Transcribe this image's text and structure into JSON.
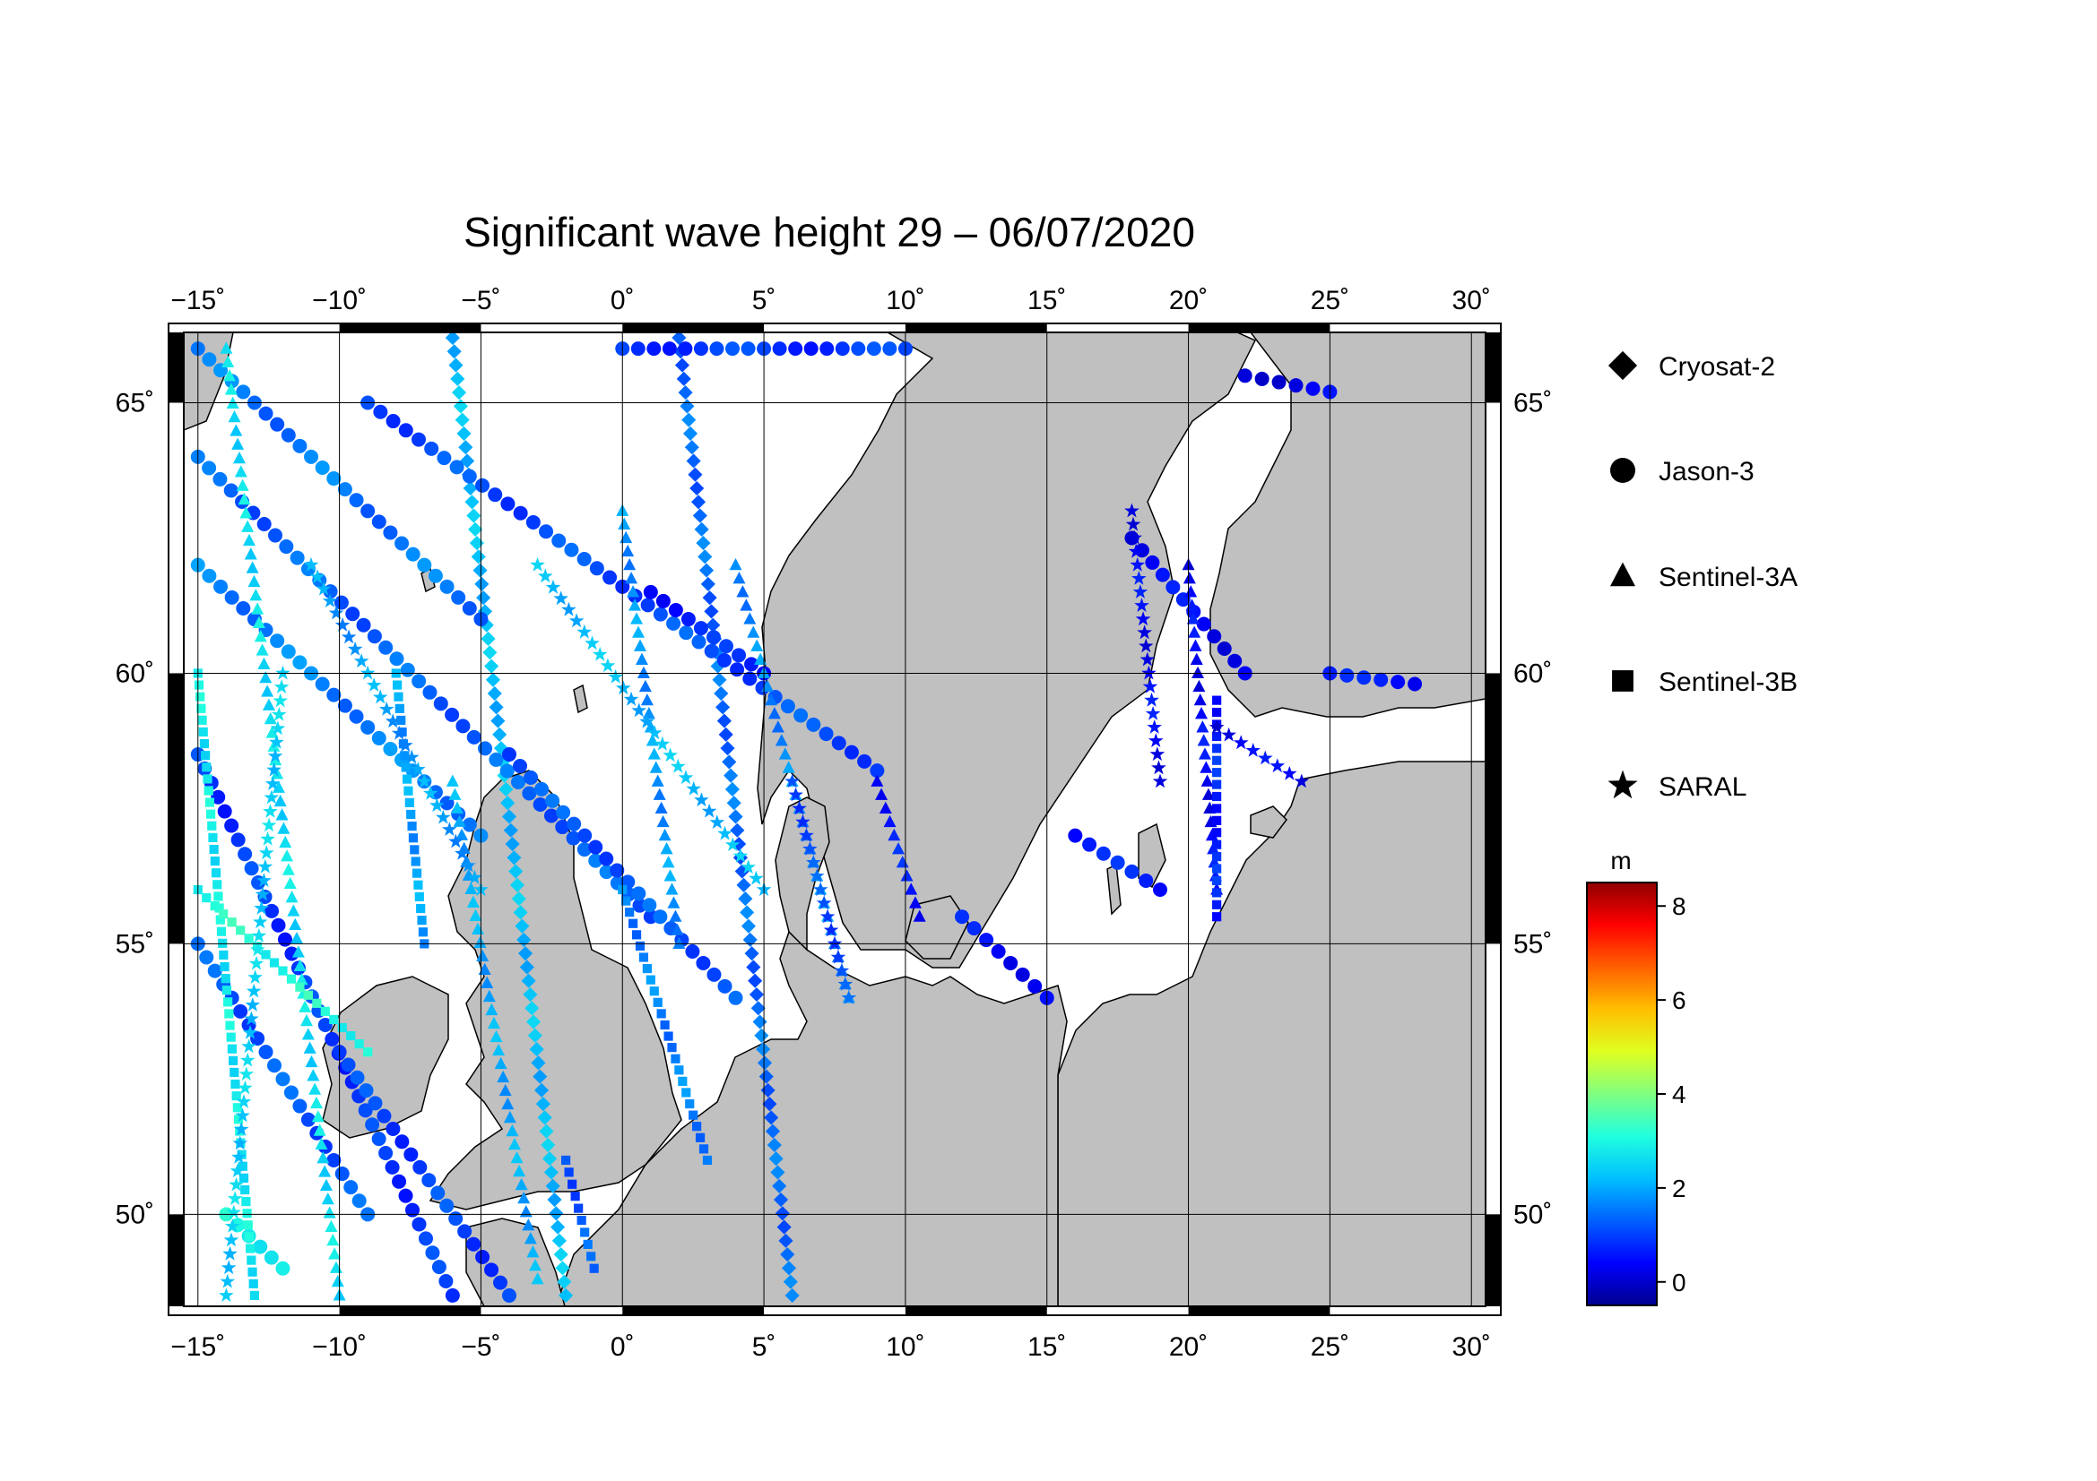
{
  "title": "Significant wave height 29 – 06/07/2020",
  "map": {
    "lon_range": [
      -15.5,
      30.5
    ],
    "lat_range": [
      48.3,
      66.3
    ],
    "lon_ticks": [
      "−15˚",
      "−10˚",
      "−5˚",
      "0˚",
      "5˚",
      "10˚",
      "15˚",
      "20˚",
      "25˚",
      "30˚"
    ],
    "lat_ticks": [
      "50˚",
      "55˚",
      "60˚",
      "65˚"
    ],
    "land_color": "#c0c0c0",
    "sea_color": "#ffffff"
  },
  "legend": {
    "items": [
      {
        "label": "Cryosat-2",
        "icon": "diamond-icon"
      },
      {
        "label": "Jason-3",
        "icon": "circle-icon"
      },
      {
        "label": "Sentinel-3A",
        "icon": "triangle-icon"
      },
      {
        "label": "Sentinel-3B",
        "icon": "square-icon"
      },
      {
        "label": "SARAL",
        "icon": "star-icon"
      }
    ]
  },
  "colorbar": {
    "unit": "m",
    "ticks": [
      "0",
      "2",
      "4",
      "6",
      "8"
    ],
    "range": [
      -0.5,
      8.5
    ],
    "colors": [
      "#00008f",
      "#0000ff",
      "#0060ff",
      "#00bfff",
      "#20ffdf",
      "#80ff80",
      "#dfff20",
      "#ffbf00",
      "#ff6000",
      "#ff0000",
      "#8f0000"
    ]
  },
  "chart_data": {
    "type": "scatter",
    "title": "Significant wave height 29 – 06/07/2020",
    "value_unit": "m",
    "xlim": [
      -15.5,
      30.5
    ],
    "ylim": [
      48.3,
      66.3
    ],
    "series": [
      {
        "name": "Cryosat-2",
        "tracks": [
          {
            "start": [
              -2,
              48.5
            ],
            "end": [
              -6,
              66.2
            ],
            "hs": 2.2
          },
          {
            "start": [
              6,
              48.5
            ],
            "end": [
              2,
              66.2
            ],
            "hs": 1.4
          }
        ]
      },
      {
        "name": "Jason-3",
        "tracks": [
          {
            "start": [
              -15,
              66
            ],
            "end": [
              -5,
              61
            ],
            "hs": 1.5
          },
          {
            "start": [
              -15,
              64
            ],
            "end": [
              1,
              55.5
            ],
            "hs": 1.3
          },
          {
            "start": [
              -15,
              58.5
            ],
            "end": [
              -6,
              48.5
            ],
            "hs": 0.9
          },
          {
            "start": [
              -9,
              65
            ],
            "end": [
              9,
              58.2
            ],
            "hs": 1.1
          },
          {
            "start": [
              1,
              61.5
            ],
            "end": [
              5,
              60
            ],
            "hs": 0.7
          },
          {
            "start": [
              -4,
              58.5
            ],
            "end": [
              4,
              54
            ],
            "hs": 1.2
          },
          {
            "start": [
              -10,
              53
            ],
            "end": [
              -4,
              48.5
            ],
            "hs": 1.0
          },
          {
            "start": [
              -15,
              55
            ],
            "end": [
              -9,
              50
            ],
            "hs": 1.2
          },
          {
            "start": [
              -15,
              62
            ],
            "end": [
              -5,
              57
            ],
            "hs": 1.6
          },
          {
            "start": [
              0,
              66
            ],
            "end": [
              10,
              66
            ],
            "hs": 0.9
          },
          {
            "start": [
              22,
              65.5
            ],
            "end": [
              25,
              65.2
            ],
            "hs": 0.3
          },
          {
            "start": [
              18,
              62.5
            ],
            "end": [
              22,
              60
            ],
            "hs": 0.4
          },
          {
            "start": [
              16,
              57
            ],
            "end": [
              19,
              56
            ],
            "hs": 0.6
          },
          {
            "start": [
              25,
              60
            ],
            "end": [
              28,
              59.8
            ],
            "hs": 0.5
          },
          {
            "start": [
              12,
              55.5
            ],
            "end": [
              15,
              54
            ],
            "hs": 0.5
          },
          {
            "start": [
              -14,
              50
            ],
            "end": [
              -12,
              49
            ],
            "hs": 3.0
          }
        ]
      },
      {
        "name": "Sentinel-3A",
        "tracks": [
          {
            "start": [
              -14,
              66
            ],
            "end": [
              -10,
              48.5
            ],
            "hs": 2.6
          },
          {
            "start": [
              -6,
              58
            ],
            "end": [
              -3,
              48.8
            ],
            "hs": 2.0
          },
          {
            "start": [
              0,
              63
            ],
            "end": [
              2,
              55
            ],
            "hs": 1.8
          },
          {
            "start": [
              4,
              62
            ],
            "end": [
              8,
              54
            ],
            "hs": 1.7
          },
          {
            "start": [
              9,
              58
            ],
            "end": [
              10.5,
              55.5
            ],
            "hs": 0.6
          },
          {
            "start": [
              20,
              62
            ],
            "end": [
              21,
              56
            ],
            "hs": 0.4
          }
        ]
      },
      {
        "name": "Sentinel-3B",
        "tracks": [
          {
            "start": [
              -15,
              60
            ],
            "end": [
              -13,
              48.5
            ],
            "hs": 2.8
          },
          {
            "start": [
              -8,
              60
            ],
            "end": [
              -7,
              55
            ],
            "hs": 1.9
          },
          {
            "start": [
              0,
              56
            ],
            "end": [
              3,
              51
            ],
            "hs": 1.6
          },
          {
            "start": [
              -2,
              51
            ],
            "end": [
              -1,
              49
            ],
            "hs": 1.2
          },
          {
            "start": [
              21,
              59.5
            ],
            "end": [
              21,
              55.5
            ],
            "hs": 0.7
          },
          {
            "start": [
              -15,
              56
            ],
            "end": [
              -9,
              53
            ],
            "hs": 3.1
          }
        ]
      },
      {
        "name": "SARAL",
        "tracks": [
          {
            "start": [
              -12,
              60
            ],
            "end": [
              -14,
              48.5
            ],
            "hs": 2.4
          },
          {
            "start": [
              -11,
              62
            ],
            "end": [
              -5,
              56
            ],
            "hs": 1.9
          },
          {
            "start": [
              -3,
              62
            ],
            "end": [
              5,
              56
            ],
            "hs": 2.2
          },
          {
            "start": [
              6,
              58
            ],
            "end": [
              8,
              54
            ],
            "hs": 1.1
          },
          {
            "start": [
              18,
              63
            ],
            "end": [
              19,
              58
            ],
            "hs": 0.4
          },
          {
            "start": [
              21,
              59
            ],
            "end": [
              24,
              58
            ],
            "hs": 0.3
          }
        ]
      }
    ]
  }
}
